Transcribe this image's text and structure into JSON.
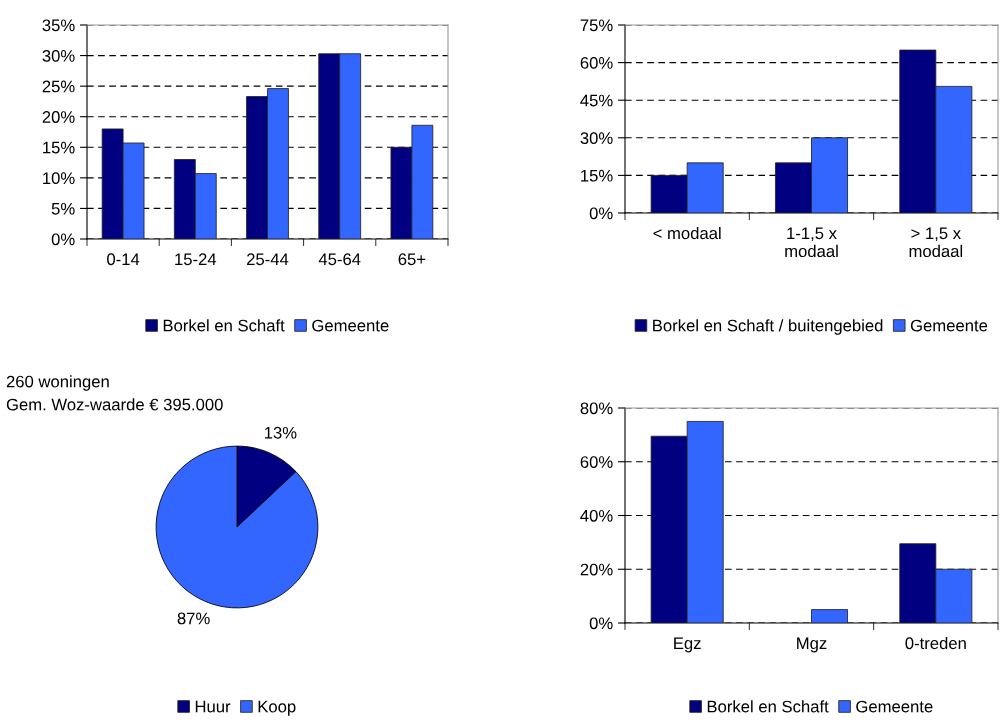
{
  "chart_data": [
    {
      "type": "bar",
      "categories": [
        "0-14",
        "15-24",
        "25-44",
        "45-64",
        "65+"
      ],
      "series": [
        {
          "name": "Borkel en Schaft",
          "color": "#000080",
          "values": [
            18,
            13,
            23.3,
            30.3,
            15
          ]
        },
        {
          "name": "Gemeente",
          "color": "#3366ff",
          "values": [
            15.7,
            10.7,
            24.6,
            30.3,
            18.6
          ]
        }
      ],
      "ylim": [
        0,
        35
      ],
      "yticks": [
        {
          "value": 0,
          "label": "0%"
        },
        {
          "value": 5,
          "label": "5%"
        },
        {
          "value": 10,
          "label": "10%"
        },
        {
          "value": 15,
          "label": "15%"
        },
        {
          "value": 20,
          "label": "20%"
        },
        {
          "value": 25,
          "label": "25%"
        },
        {
          "value": 30,
          "label": "30%"
        },
        {
          "value": 35,
          "label": "35%"
        }
      ],
      "grid": "y",
      "line_style": "dashed",
      "legend": "bottom"
    },
    {
      "type": "bar",
      "categories": [
        "< modaal",
        "1-1,5 x\nmodaal",
        "> 1,5 x\nmodaal"
      ],
      "series": [
        {
          "name": "Borkel en Schaft / buitengebied",
          "color": "#000080",
          "values": [
            15,
            20,
            65
          ]
        },
        {
          "name": "Gemeente",
          "color": "#3366ff",
          "values": [
            20,
            30,
            50.5
          ]
        }
      ],
      "ylim": [
        0,
        75
      ],
      "yticks": [
        {
          "value": 0,
          "label": "0%"
        },
        {
          "value": 15,
          "label": "15%"
        },
        {
          "value": 30,
          "label": "30%"
        },
        {
          "value": 45,
          "label": "45%"
        },
        {
          "value": 60,
          "label": "60%"
        },
        {
          "value": 75,
          "label": "75%"
        }
      ],
      "grid": "y",
      "line_style": "dashed",
      "legend": "bottom"
    },
    {
      "type": "pie",
      "categories": [
        "Huur",
        "Koop"
      ],
      "values": [
        13,
        87
      ],
      "colors": [
        "#000080",
        "#3366ff"
      ],
      "value_labels": [
        "13%",
        "87%"
      ],
      "annotations": [
        "260 woningen",
        "Gem. Woz-waarde € 395.000"
      ],
      "legend": "bottom"
    },
    {
      "type": "bar",
      "categories": [
        "Egz",
        "Mgz",
        "0-treden"
      ],
      "series": [
        {
          "name": "Borkel en Schaft",
          "color": "#000080",
          "values": [
            69.5,
            null,
            29.5
          ]
        },
        {
          "name": "Gemeente",
          "color": "#3366ff",
          "values": [
            75,
            5,
            20
          ]
        }
      ],
      "ylim": [
        0,
        80
      ],
      "yticks": [
        {
          "value": 0,
          "label": "0%"
        },
        {
          "value": 20,
          "label": "20%"
        },
        {
          "value": 40,
          "label": "40%"
        },
        {
          "value": 60,
          "label": "60%"
        },
        {
          "value": 80,
          "label": "80%"
        }
      ],
      "grid": "y",
      "line_style": "dashed",
      "legend": "bottom"
    }
  ]
}
